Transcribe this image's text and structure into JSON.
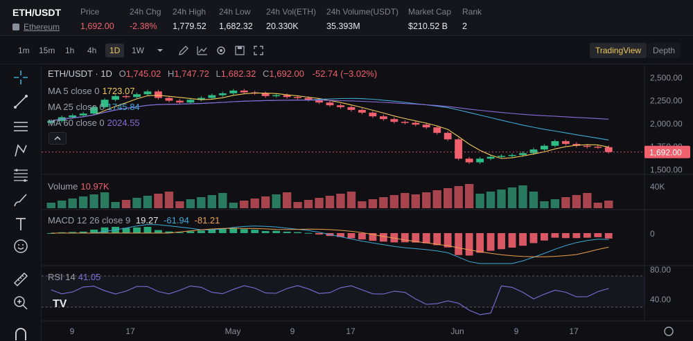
{
  "header": {
    "symbol": "ETH/USDT",
    "asset_name": "Ethereum",
    "stats": [
      {
        "label": "Price",
        "value": "1,692.00",
        "color": "#f0616d"
      },
      {
        "label": "24h Chg",
        "value": "-2.38%",
        "color": "#f0616d"
      },
      {
        "label": "24h High",
        "value": "1,779.52",
        "color": "#e6e8ee"
      },
      {
        "label": "24h Low",
        "value": "1,682.32",
        "color": "#e6e8ee"
      },
      {
        "label": "24h Vol(ETH)",
        "value": "20.330K",
        "color": "#e6e8ee"
      },
      {
        "label": "24h Volume(USDT)",
        "value": "35.393M",
        "color": "#e6e8ee"
      },
      {
        "label": "Market Cap",
        "value": "$210.52 B",
        "color": "#e6e8ee"
      },
      {
        "label": "Rank",
        "value": "2",
        "color": "#e6e8ee"
      }
    ]
  },
  "toolbar": {
    "timeframes": [
      "1m",
      "15m",
      "1h",
      "4h",
      "1D",
      "1W"
    ],
    "active_timeframe": "1D",
    "tradingview_label": "TradingView",
    "depth_label": "Depth"
  },
  "legend": {
    "ohlc_title": "ETH/USDT · 1D",
    "o_label": "O",
    "o": "1,745.02",
    "h_label": "H",
    "h": "1,747.72",
    "l_label": "L",
    "l": "1,682.32",
    "c_label": "C",
    "c": "1,692.00",
    "chg": "-52.74 (−3.02%)",
    "ma5_label": "MA 5 close 0",
    "ma5": "1723.07",
    "ma25_label": "MA 25 close 0",
    "ma25": "1745.84",
    "ma60_label": "MA 60 close 0",
    "ma60": "2024.55",
    "volume_label": "Volume",
    "volume": "10.97K",
    "macd_label": "MACD 12 26 close 9",
    "macd_v1": "19.27",
    "macd_v2": "-61.94",
    "macd_v3": "-81.21",
    "rsi_label": "RSI 14",
    "rsi": "41.05"
  },
  "colors": {
    "up": "#2ebd85",
    "down": "#f0616d",
    "ma5": "#f0c85a",
    "ma25": "#3fa9d6",
    "ma60": "#8a6ad8",
    "rsi": "#7b6fd6"
  },
  "price_axis": {
    "ticks": [
      "2,500.00",
      "2,250.00",
      "2,000.00",
      "1,750.00",
      "1,500.00"
    ],
    "current_price": "1,692.00",
    "volume_tick": "40K",
    "macd_tick": "0",
    "rsi_ticks": [
      "80.00",
      "40.00"
    ]
  },
  "time_axis": {
    "ticks": [
      "9",
      "17",
      "May",
      "9",
      "17",
      "Jun",
      "9",
      "17"
    ]
  },
  "chart_data": {
    "type": "candlestick",
    "candles_close_trend": [
      2030,
      2070,
      2090,
      2110,
      2180,
      2260,
      2300,
      2290,
      2320,
      2350,
      2280,
      2250,
      2230,
      2260,
      2280,
      2310,
      2330,
      2360,
      2340,
      2330,
      2300,
      2310,
      2290,
      2280,
      2260,
      2230,
      2200,
      2180,
      2150,
      2120,
      2080,
      2050,
      2020,
      2010,
      1990,
      1960,
      1900,
      1830,
      1620,
      1580,
      1620,
      1640,
      1650,
      1660,
      1680,
      1720,
      1760,
      1810,
      1780,
      1760,
      1750,
      1745,
      1692
    ],
    "yrange": [
      1450,
      2600
    ]
  }
}
